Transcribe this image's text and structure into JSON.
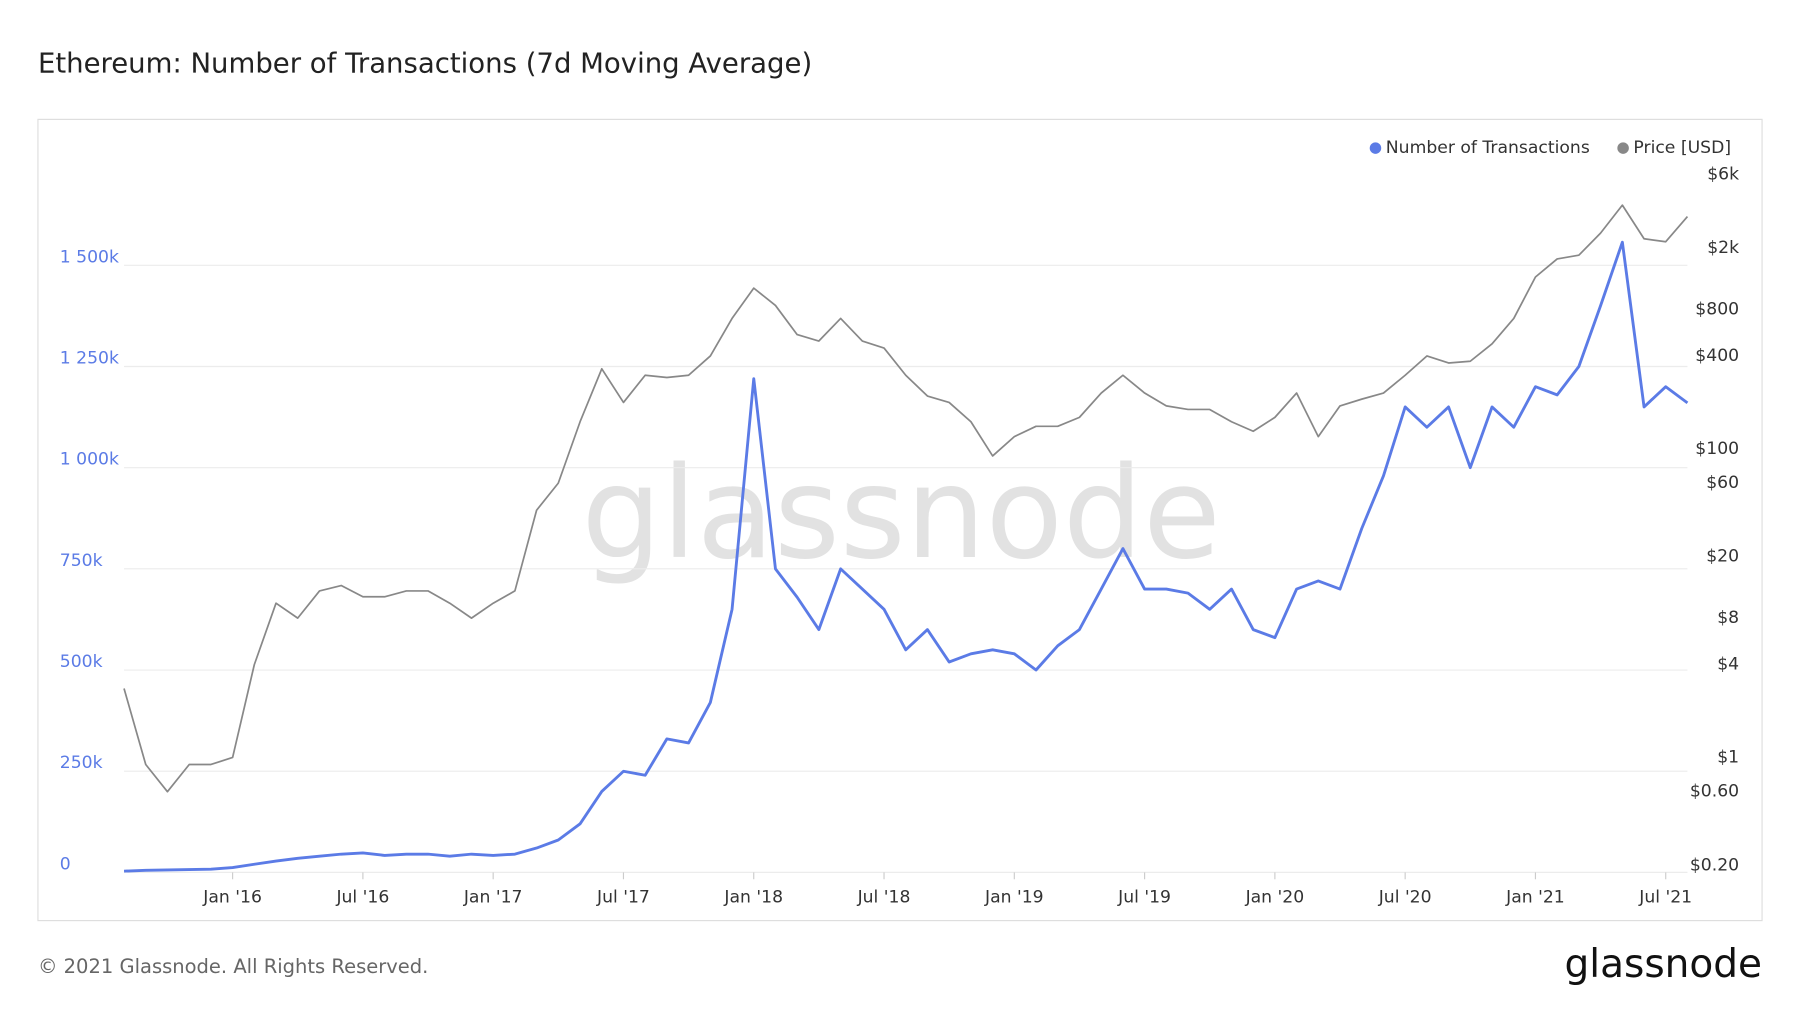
{
  "chart_data": {
    "type": "line",
    "title": "Ethereum: Number of Transactions (7d Moving Average)",
    "watermark": "glassnode",
    "footer": "© 2021 Glassnode. All Rights Reserved.",
    "logo": "glassnode",
    "legend": "top-right",
    "x": [
      "2015-08",
      "2015-09",
      "2015-10",
      "2015-11",
      "2015-12",
      "2016-01",
      "2016-02",
      "2016-03",
      "2016-04",
      "2016-05",
      "2016-06",
      "2016-07",
      "2016-08",
      "2016-09",
      "2016-10",
      "2016-11",
      "2016-12",
      "2017-01",
      "2017-02",
      "2017-03",
      "2017-04",
      "2017-05",
      "2017-06",
      "2017-07",
      "2017-08",
      "2017-09",
      "2017-10",
      "2017-11",
      "2017-12",
      "2018-01",
      "2018-02",
      "2018-03",
      "2018-04",
      "2018-05",
      "2018-06",
      "2018-07",
      "2018-08",
      "2018-09",
      "2018-10",
      "2018-11",
      "2018-12",
      "2019-01",
      "2019-02",
      "2019-03",
      "2019-04",
      "2019-05",
      "2019-06",
      "2019-07",
      "2019-08",
      "2019-09",
      "2019-10",
      "2019-11",
      "2019-12",
      "2020-01",
      "2020-02",
      "2020-03",
      "2020-04",
      "2020-05",
      "2020-06",
      "2020-07",
      "2020-08",
      "2020-09",
      "2020-10",
      "2020-11",
      "2020-12",
      "2021-01",
      "2021-02",
      "2021-03",
      "2021-04",
      "2021-05",
      "2021-06",
      "2021-07",
      "2021-08"
    ],
    "xlim": [
      "2015-08",
      "2021-08"
    ],
    "xticks": [
      {
        "value": "2016-01",
        "label": "Jan '16"
      },
      {
        "value": "2016-07",
        "label": "Jul '16"
      },
      {
        "value": "2017-01",
        "label": "Jan '17"
      },
      {
        "value": "2017-07",
        "label": "Jul '17"
      },
      {
        "value": "2018-01",
        "label": "Jan '18"
      },
      {
        "value": "2018-07",
        "label": "Jul '18"
      },
      {
        "value": "2019-01",
        "label": "Jan '19"
      },
      {
        "value": "2019-07",
        "label": "Jul '19"
      },
      {
        "value": "2020-01",
        "label": "Jan '20"
      },
      {
        "value": "2020-07",
        "label": "Jul '20"
      },
      {
        "value": "2021-01",
        "label": "Jan '21"
      },
      {
        "value": "2021-07",
        "label": "Jul '21"
      }
    ],
    "ylim": [
      0,
      1750000
    ],
    "yticks": [
      0,
      {
        "value": 250000,
        "label": "250k"
      },
      {
        "value": 500000,
        "label": "500k"
      },
      {
        "value": 750000,
        "label": "750k"
      },
      {
        "value": 1000000,
        "label": "1 000k"
      },
      {
        "value": 1250000,
        "label": "1 250k"
      },
      {
        "value": 1500000,
        "label": "1 500k"
      }
    ],
    "y2lim": [
      0.18,
      7000
    ],
    "y2scale": "log",
    "y2ticks": [
      {
        "value": 0.2,
        "label": "$0.20"
      },
      {
        "value": 0.6,
        "label": "$0.60"
      },
      {
        "value": 1,
        "label": "$1"
      },
      {
        "value": 4,
        "label": "$4"
      },
      {
        "value": 8,
        "label": "$8"
      },
      {
        "value": 20,
        "label": "$20"
      },
      {
        "value": 60,
        "label": "$60"
      },
      {
        "value": 100,
        "label": "$100"
      },
      {
        "value": 400,
        "label": "$400"
      },
      {
        "value": 800,
        "label": "$800"
      },
      {
        "value": 2000,
        "label": "$2k"
      },
      {
        "value": 6000,
        "label": "$6k"
      }
    ],
    "grid": true,
    "series": [
      {
        "name": "Number of Transactions",
        "color": "#5b7be6",
        "axis": "y",
        "values": [
          3000,
          5000,
          6000,
          7000,
          8000,
          12000,
          20000,
          28000,
          35000,
          40000,
          45000,
          48000,
          42000,
          45000,
          45000,
          40000,
          45000,
          42000,
          45000,
          60000,
          80000,
          120000,
          200000,
          250000,
          240000,
          330000,
          320000,
          420000,
          650000,
          1220000,
          750000,
          680000,
          600000,
          750000,
          700000,
          650000,
          550000,
          600000,
          520000,
          540000,
          550000,
          540000,
          500000,
          560000,
          600000,
          700000,
          800000,
          700000,
          700000,
          690000,
          650000,
          700000,
          600000,
          580000,
          700000,
          720000,
          700000,
          850000,
          980000,
          1150000,
          1100000,
          1150000,
          1000000,
          1150000,
          1100000,
          1200000,
          1180000,
          1250000,
          1400000,
          1557000,
          1150000,
          1200000,
          1160000
        ]
      },
      {
        "name": "Price [USD]",
        "color": "#888888",
        "axis": "y2",
        "values": [
          2.8,
          0.9,
          0.6,
          0.9,
          0.9,
          1.0,
          4,
          10,
          8,
          12,
          13,
          11,
          11,
          12,
          12,
          10,
          8,
          10,
          12,
          40,
          60,
          150,
          330,
          200,
          300,
          290,
          300,
          400,
          700,
          1100,
          850,
          550,
          500,
          700,
          500,
          450,
          300,
          220,
          200,
          150,
          90,
          120,
          140,
          140,
          160,
          230,
          300,
          230,
          190,
          180,
          180,
          150,
          130,
          160,
          230,
          120,
          190,
          210,
          230,
          300,
          400,
          360,
          370,
          480,
          700,
          1300,
          1700,
          1800,
          2500,
          3800,
          2300,
          2200,
          3200
        ]
      }
    ]
  }
}
